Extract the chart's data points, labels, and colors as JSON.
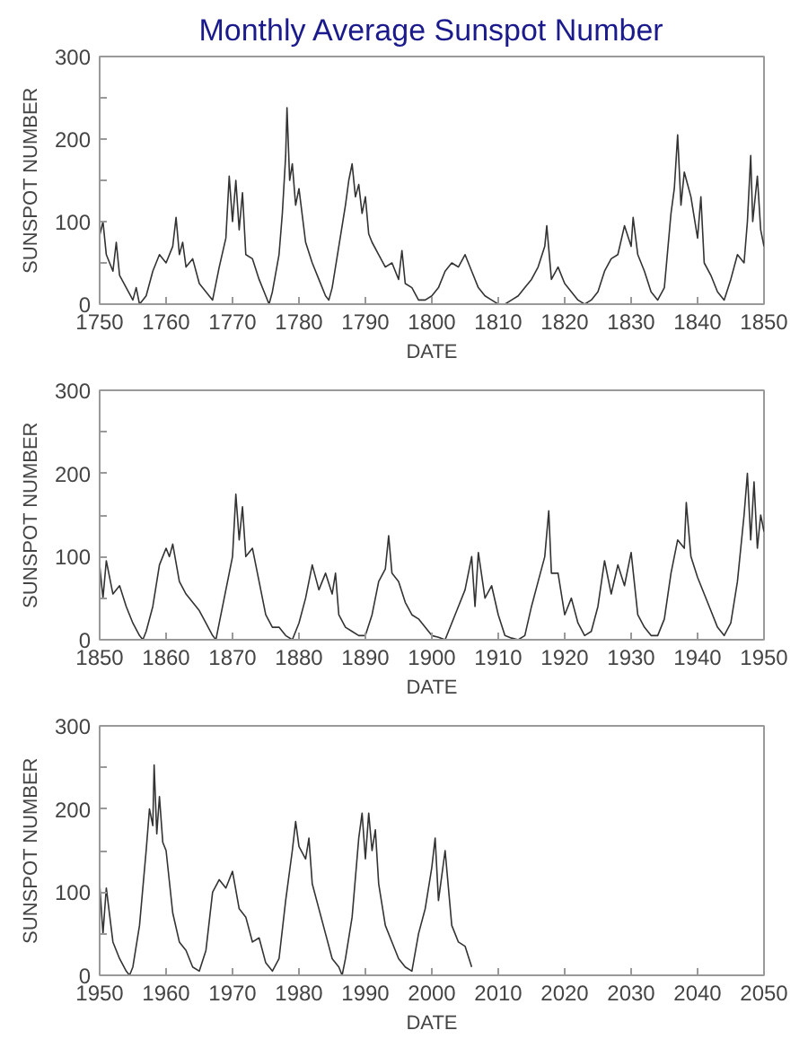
{
  "chart_data": [
    {
      "type": "line",
      "title": "Monthly Average Sunspot Number",
      "xlabel": "DATE",
      "ylabel": "SUNSPOT NUMBER",
      "xlim": [
        1750,
        1850
      ],
      "ylim": [
        0,
        300
      ],
      "xticks": [
        1750,
        1760,
        1770,
        1780,
        1790,
        1800,
        1810,
        1820,
        1830,
        1840,
        1850
      ],
      "yticks": [
        0,
        {
          "value": 50,
          "label": null
        },
        100,
        {
          "value": 150,
          "label": null
        },
        200,
        {
          "value": 250,
          "label": null
        },
        300
      ],
      "grid": false,
      "line_style": "solid",
      "series": [
        {
          "color": "#333333",
          "x": [
            1750,
            1750.5,
            1751,
            1752,
            1752.5,
            1753,
            1754,
            1755,
            1755.5,
            1756,
            1757,
            1758,
            1759,
            1760,
            1761,
            1761.5,
            1762,
            1762.5,
            1763,
            1764,
            1765,
            1766,
            1767,
            1768,
            1769,
            1769.5,
            1770,
            1770.5,
            1771,
            1771.5,
            1772,
            1773,
            1774,
            1775,
            1775.5,
            1776,
            1777,
            1777.5,
            1778,
            1778.2,
            1778.6,
            1779,
            1779.5,
            1780,
            1781,
            1782,
            1783,
            1784,
            1784.5,
            1785,
            1786,
            1787,
            1787.5,
            1788,
            1788.5,
            1789,
            1789.5,
            1790,
            1790.5,
            1791,
            1792,
            1793,
            1794,
            1795,
            1795.5,
            1796,
            1797,
            1798,
            1799,
            1800,
            1801,
            1802,
            1803,
            1804,
            1805,
            1806,
            1807,
            1808,
            1809,
            1810,
            1811,
            1812,
            1813,
            1814,
            1815,
            1816,
            1817,
            1817.3,
            1818,
            1819,
            1820,
            1821,
            1822,
            1823,
            1824,
            1825,
            1826,
            1827,
            1828,
            1829,
            1830,
            1830.3,
            1831,
            1832,
            1833,
            1834,
            1835,
            1836,
            1836.5,
            1837,
            1837.5,
            1838,
            1839,
            1840,
            1840.5,
            1841,
            1842,
            1843,
            1844,
            1845,
            1846,
            1847,
            1847.5,
            1848,
            1848.3,
            1849,
            1849.5,
            1850
          ],
          "values": [
            83,
            100,
            60,
            40,
            75,
            35,
            20,
            5,
            20,
            0,
            10,
            40,
            60,
            50,
            70,
            105,
            60,
            75,
            45,
            55,
            25,
            15,
            5,
            45,
            80,
            155,
            100,
            150,
            90,
            135,
            60,
            55,
            30,
            10,
            0,
            15,
            60,
            110,
            180,
            238,
            150,
            170,
            120,
            140,
            75,
            50,
            30,
            10,
            5,
            20,
            70,
            120,
            150,
            170,
            130,
            145,
            110,
            130,
            85,
            75,
            60,
            45,
            50,
            30,
            65,
            25,
            20,
            5,
            5,
            10,
            20,
            40,
            50,
            45,
            60,
            40,
            20,
            10,
            5,
            0,
            0,
            5,
            10,
            20,
            30,
            45,
            70,
            95,
            30,
            45,
            25,
            15,
            5,
            0,
            5,
            15,
            40,
            55,
            60,
            95,
            70,
            105,
            60,
            40,
            15,
            5,
            20,
            110,
            140,
            205,
            120,
            160,
            130,
            80,
            130,
            50,
            35,
            15,
            5,
            30,
            60,
            50,
            100,
            180,
            100,
            155,
            90,
            70
          ]
        }
      ]
    },
    {
      "type": "line",
      "xlabel": "DATE",
      "ylabel": "SUNSPOT NUMBER",
      "xlim": [
        1850,
        1950
      ],
      "ylim": [
        0,
        300
      ],
      "xticks": [
        1850,
        1860,
        1870,
        1880,
        1890,
        1900,
        1910,
        1920,
        1930,
        1940,
        1950
      ],
      "yticks": [
        0,
        {
          "value": 50,
          "label": null
        },
        100,
        {
          "value": 150,
          "label": null
        },
        200,
        {
          "value": 250,
          "label": null
        },
        300
      ],
      "grid": false,
      "line_style": "solid",
      "series": [
        {
          "color": "#333333",
          "x": [
            1850,
            1850.5,
            1851,
            1852,
            1853,
            1854,
            1855,
            1856,
            1856.5,
            1857,
            1858,
            1859,
            1860,
            1860.5,
            1861,
            1862,
            1863,
            1864,
            1865,
            1866,
            1867,
            1867.5,
            1868,
            1869,
            1870,
            1870.5,
            1871,
            1871.5,
            1872,
            1873,
            1874,
            1875,
            1876,
            1877,
            1878,
            1879,
            1880,
            1881,
            1882,
            1883,
            1884,
            1885,
            1885.5,
            1886,
            1887,
            1888,
            1889,
            1890,
            1891,
            1892,
            1893,
            1893.5,
            1894,
            1895,
            1896,
            1897,
            1898,
            1899,
            1900,
            1901,
            1902,
            1903,
            1904,
            1905,
            1906,
            1906.5,
            1907,
            1908,
            1909,
            1910,
            1911,
            1912,
            1913,
            1914,
            1915,
            1916,
            1917,
            1917.6,
            1918,
            1919,
            1920,
            1921,
            1922,
            1923,
            1924,
            1925,
            1926,
            1927,
            1928,
            1929,
            1930,
            1931,
            1932,
            1933,
            1934,
            1935,
            1936,
            1937,
            1938,
            1938.3,
            1939,
            1940,
            1941,
            1942,
            1943,
            1944,
            1945,
            1946,
            1947,
            1947.5,
            1948,
            1948.5,
            1949,
            1949.5,
            1950
          ],
          "values": [
            90,
            50,
            95,
            55,
            65,
            40,
            20,
            5,
            0,
            10,
            40,
            90,
            110,
            100,
            115,
            70,
            55,
            45,
            35,
            20,
            5,
            0,
            20,
            60,
            100,
            175,
            120,
            160,
            100,
            110,
            70,
            30,
            15,
            15,
            5,
            0,
            20,
            50,
            90,
            60,
            80,
            55,
            80,
            30,
            15,
            10,
            5,
            5,
            30,
            70,
            85,
            125,
            80,
            70,
            45,
            30,
            25,
            15,
            5,
            3,
            0,
            20,
            40,
            60,
            100,
            40,
            105,
            50,
            65,
            30,
            5,
            2,
            0,
            5,
            40,
            70,
            100,
            155,
            80,
            80,
            30,
            50,
            20,
            5,
            10,
            40,
            95,
            55,
            90,
            65,
            105,
            30,
            15,
            5,
            5,
            25,
            80,
            120,
            110,
            165,
            100,
            75,
            55,
            35,
            15,
            5,
            20,
            70,
            150,
            200,
            120,
            190,
            110,
            150,
            130
          ]
        }
      ]
    },
    {
      "type": "line",
      "xlabel": "DATE",
      "ylabel": "SUNSPOT NUMBER",
      "xlim": [
        1950,
        2050
      ],
      "ylim": [
        0,
        300
      ],
      "xticks": [
        1950,
        1960,
        1970,
        1980,
        1990,
        2000,
        2010,
        2020,
        2030,
        2040,
        2050
      ],
      "yticks": [
        0,
        {
          "value": 50,
          "label": null
        },
        100,
        {
          "value": 150,
          "label": null
        },
        200,
        {
          "value": 250,
          "label": null
        },
        300
      ],
      "grid": false,
      "line_style": "solid",
      "series": [
        {
          "color": "#333333",
          "x": [
            1950,
            1950.5,
            1951,
            1952,
            1953,
            1954,
            1954.5,
            1955,
            1956,
            1957,
            1957.5,
            1958,
            1958.2,
            1958.6,
            1959,
            1959.5,
            1960,
            1961,
            1962,
            1963,
            1964,
            1965,
            1966,
            1967,
            1968,
            1969,
            1970,
            1971,
            1972,
            1973,
            1974,
            1975,
            1976,
            1977,
            1978,
            1979,
            1979.5,
            1980,
            1981,
            1981.5,
            1982,
            1983,
            1984,
            1985,
            1986,
            1986.5,
            1987,
            1988,
            1989,
            1989.5,
            1990,
            1990.5,
            1991,
            1991.5,
            1992,
            1993,
            1994,
            1995,
            1996,
            1997,
            1998,
            1999,
            2000,
            2000.5,
            2001,
            2002,
            2003,
            2004,
            2005,
            2006
          ],
          "values": [
            110,
            50,
            105,
            40,
            20,
            5,
            0,
            10,
            60,
            150,
            200,
            180,
            253,
            170,
            215,
            160,
            150,
            75,
            40,
            30,
            10,
            5,
            30,
            100,
            115,
            105,
            125,
            80,
            70,
            40,
            45,
            15,
            5,
            20,
            90,
            150,
            185,
            155,
            140,
            165,
            110,
            80,
            50,
            20,
            10,
            0,
            20,
            70,
            165,
            195,
            140,
            195,
            150,
            175,
            110,
            60,
            40,
            20,
            10,
            5,
            50,
            80,
            130,
            165,
            90,
            150,
            60,
            40,
            35,
            10
          ]
        }
      ]
    }
  ]
}
